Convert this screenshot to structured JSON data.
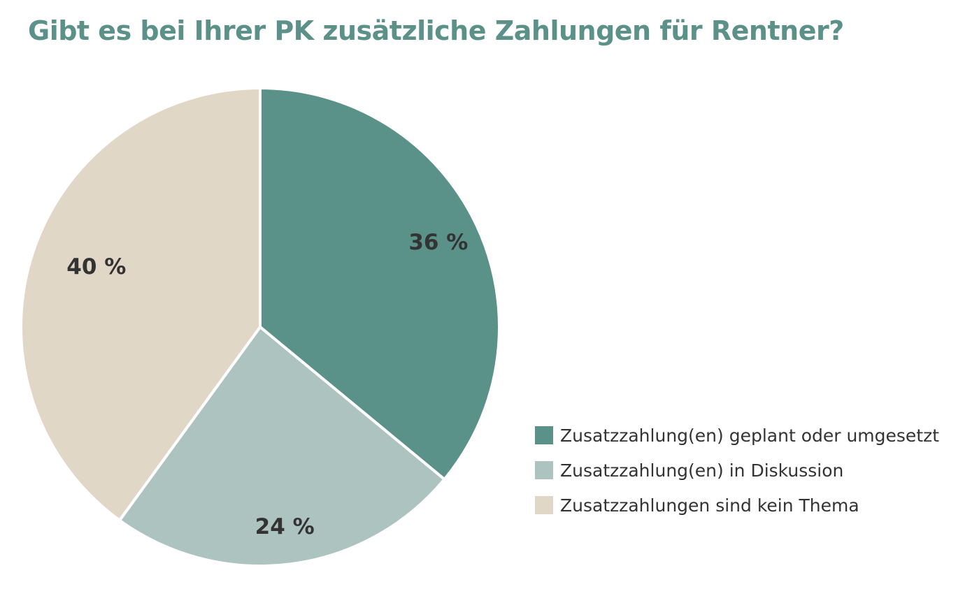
{
  "chart_data": {
    "type": "pie",
    "title": "Gibt es bei Ihrer PK zusätzliche Zahlungen für Rentner?",
    "title_color": "#5b9189",
    "categories": [
      "Zusatzzahlung(en) geplant oder umgesetzt",
      "Zusatzzahlung(en) in Diskussion",
      "Zusatzzahlungen sind kein Thema"
    ],
    "values": [
      36,
      24,
      40
    ],
    "value_labels": [
      "36 %",
      "24 %",
      "40 %"
    ],
    "colors": [
      "#5a9189",
      "#adc3c0",
      "#e0d7c6"
    ],
    "legend_position": "bottom-right",
    "start_angle": "12 o'clock",
    "direction": "clockwise"
  }
}
